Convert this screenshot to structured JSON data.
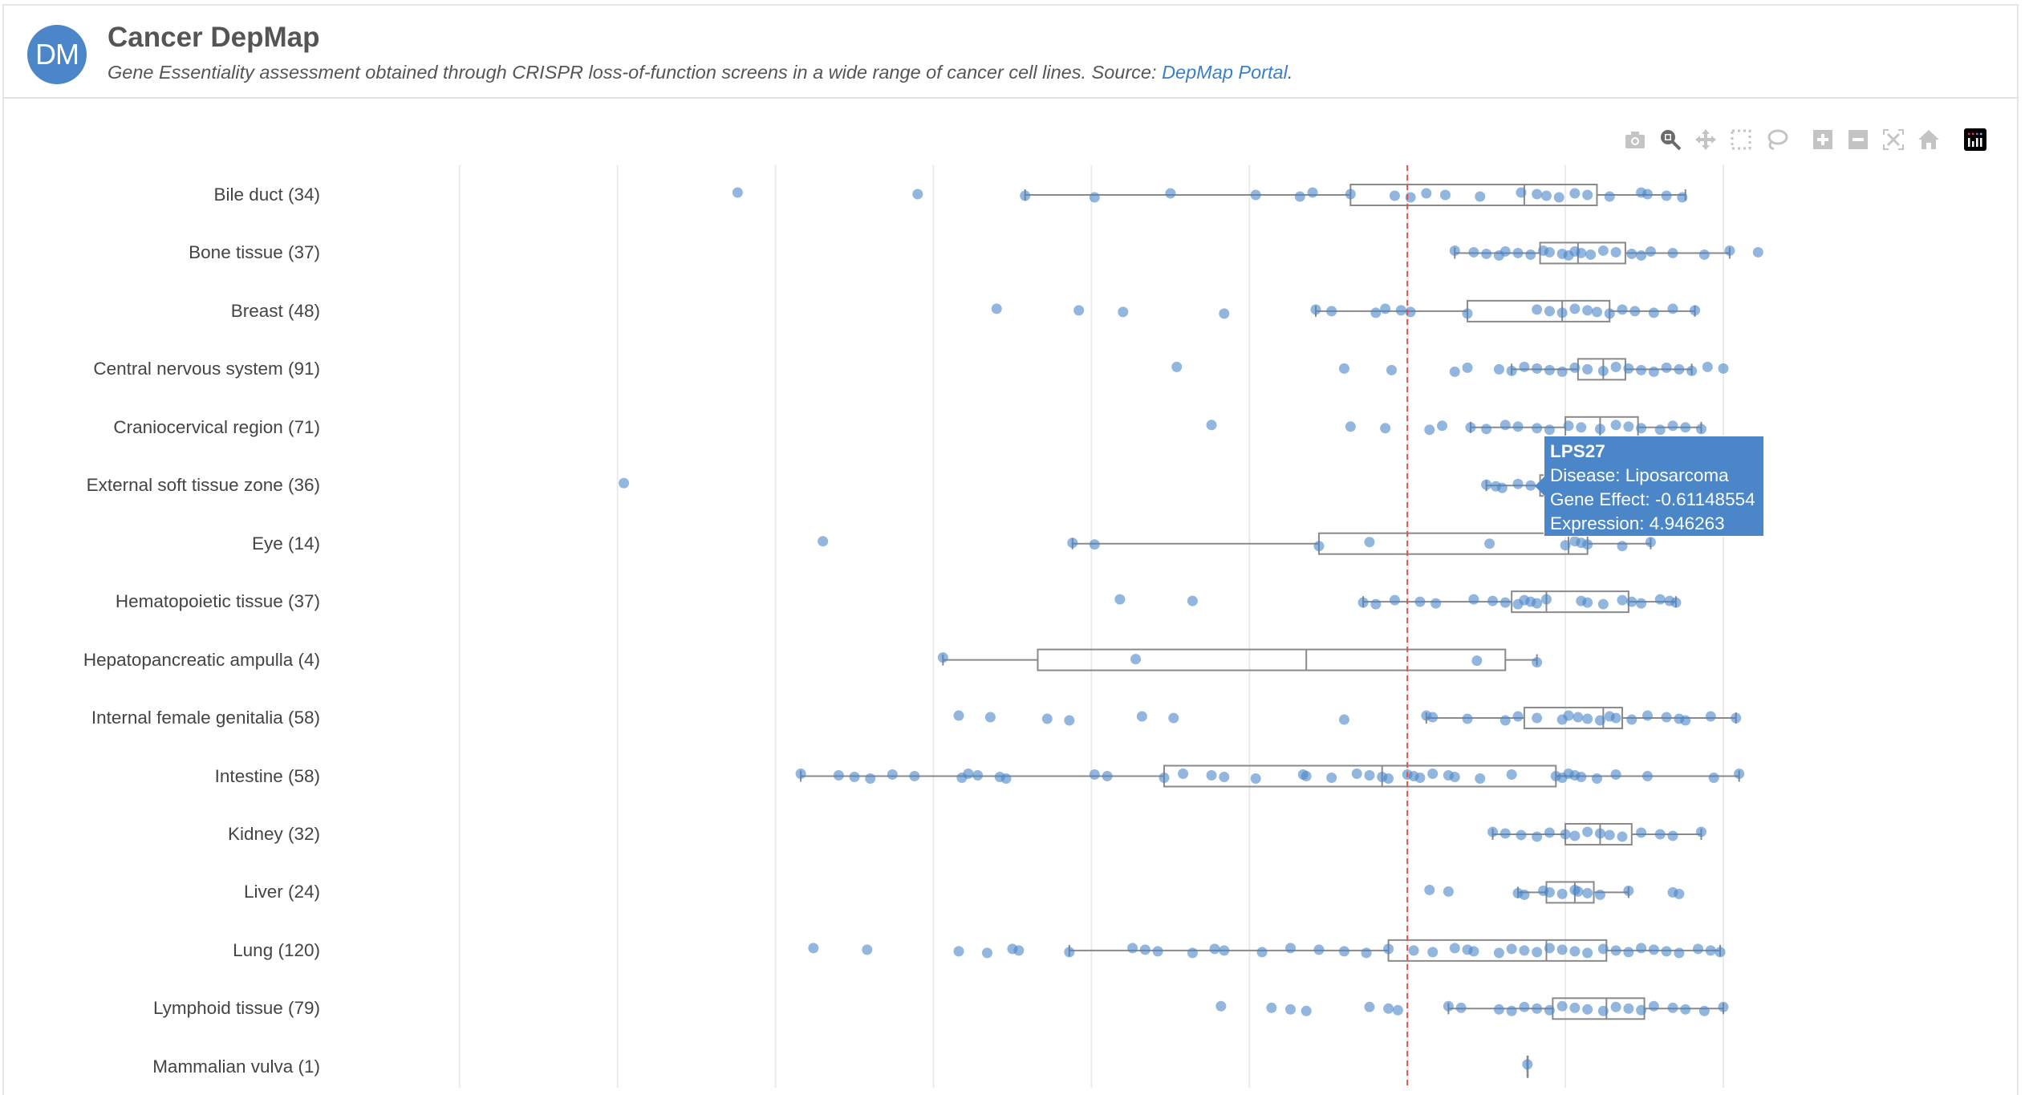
{
  "header": {
    "avatar": "DM",
    "title": "Cancer DepMap",
    "subtitle": "Gene Essentiality assessment obtained through CRISPR loss-of-function screens in a wide range of cancer cell lines. Source: ",
    "source_link": "DepMap Portal",
    "subtitle_end": "."
  },
  "toolbar": [
    {
      "icon": "camera-icon",
      "name": "download-plot-button",
      "active": false
    },
    {
      "icon": "zoom-icon",
      "name": "zoom-button",
      "active": true
    },
    {
      "icon": "pan-icon",
      "name": "pan-button",
      "active": false
    },
    {
      "icon": "box-select-icon",
      "name": "box-select-button",
      "active": false
    },
    {
      "icon": "lasso-icon",
      "name": "lasso-select-button",
      "active": false
    },
    {
      "icon": "zoom-in-icon",
      "name": "zoom-in-button",
      "active": false
    },
    {
      "icon": "zoom-out-icon",
      "name": "zoom-out-button",
      "active": false
    },
    {
      "icon": "autoscale-icon",
      "name": "autoscale-button",
      "active": false
    },
    {
      "icon": "home-icon",
      "name": "reset-axes-button",
      "active": false
    },
    {
      "icon": "plotly-logo-icon",
      "name": "plotly-logo",
      "active": false
    }
  ],
  "tooltip": {
    "title": "LPS27",
    "line1": "Disease: Liposarcoma",
    "line2": "Gene Effect: -0.61148554",
    "line3": "Expression: 4.946263"
  },
  "colors": {
    "point": "#4a86c8",
    "box": "#8a8a8a",
    "reference_line": "#d9534f",
    "grid": "#ebebeb",
    "tooltip": "#4a86c8"
  },
  "chart_data": {
    "type": "box",
    "orientation": "horizontal",
    "xrange": [
      -4.4,
      0.2
    ],
    "grid": true,
    "grid_step": 0.5,
    "reference_line": -1,
    "categories": [
      {
        "label": "Bile duct (34)",
        "box": [
          -2.21,
          -1.18,
          -0.63,
          -0.4,
          -0.12
        ],
        "points": [
          -3.12,
          -2.55,
          -2.21,
          -1.99,
          -1.75,
          -1.48,
          -1.34,
          -1.3,
          -1.18,
          -1.04,
          -0.99,
          -0.94,
          -0.88,
          -0.77,
          -0.64,
          -0.59,
          -0.56,
          -0.52,
          -0.47,
          -0.43,
          -0.36,
          -0.26,
          -0.24,
          -0.18,
          -0.13
        ]
      },
      {
        "label": "Bone tissue (37)",
        "box": [
          -0.85,
          -0.58,
          -0.46,
          -0.31,
          0.02
        ],
        "points": [
          -0.85,
          -0.79,
          -0.75,
          -0.71,
          -0.69,
          -0.65,
          -0.61,
          -0.57,
          -0.55,
          -0.51,
          -0.49,
          -0.47,
          -0.45,
          -0.42,
          -0.38,
          -0.34,
          -0.29,
          -0.26,
          -0.23,
          -0.16,
          -0.06,
          0.02,
          0.11
        ]
      },
      {
        "label": "Breast (48)",
        "box": [
          -1.29,
          -0.81,
          -0.51,
          -0.36,
          -0.09
        ],
        "points": [
          -2.3,
          -2.04,
          -1.9,
          -1.58,
          -1.29,
          -1.24,
          -1.1,
          -1.07,
          -1.02,
          -0.99,
          -0.81,
          -0.59,
          -0.55,
          -0.51,
          -0.47,
          -0.43,
          -0.4,
          -0.36,
          -0.32,
          -0.28,
          -0.22,
          -0.16,
          -0.09
        ]
      },
      {
        "label": "Central nervous system (91)",
        "box": [
          -0.67,
          -0.46,
          -0.38,
          -0.31,
          -0.1
        ],
        "points": [
          -1.73,
          -1.2,
          -1.05,
          -0.85,
          -0.81,
          -0.71,
          -0.67,
          -0.63,
          -0.59,
          -0.55,
          -0.51,
          -0.47,
          -0.43,
          -0.38,
          -0.34,
          -0.3,
          -0.26,
          -0.22,
          -0.18,
          -0.14,
          -0.1,
          -0.05,
          0.0
        ]
      },
      {
        "label": "Craniocervical region (71)",
        "box": [
          -0.8,
          -0.5,
          -0.39,
          -0.27,
          -0.07
        ],
        "points": [
          -1.62,
          -1.18,
          -1.07,
          -0.93,
          -0.89,
          -0.8,
          -0.75,
          -0.69,
          -0.65,
          -0.59,
          -0.55,
          -0.49,
          -0.45,
          -0.39,
          -0.34,
          -0.3,
          -0.26,
          -0.2,
          -0.16,
          -0.12,
          -0.07
        ]
      },
      {
        "label": "External soft tissue zone (36)",
        "box": [
          -0.75,
          -0.58,
          -0.49,
          -0.38,
          -0.18
        ],
        "points": [
          -3.48,
          -0.75,
          -0.72,
          -0.7,
          -0.65,
          -0.61,
          -0.57
        ]
      },
      {
        "label": "Eye (14)",
        "box": [
          -2.06,
          -1.28,
          -0.49,
          -0.43,
          -0.23
        ],
        "points": [
          -2.85,
          -2.06,
          -1.99,
          -1.28,
          -1.12,
          -0.74,
          -0.5,
          -0.47,
          -0.45,
          -0.43,
          -0.32,
          -0.23
        ]
      },
      {
        "label": "Hematopoietic tissue (37)",
        "box": [
          -1.14,
          -0.67,
          -0.56,
          -0.3,
          -0.15
        ],
        "points": [
          -1.91,
          -1.68,
          -1.14,
          -1.1,
          -1.04,
          -0.96,
          -0.91,
          -0.79,
          -0.73,
          -0.69,
          -0.65,
          -0.63,
          -0.61,
          -0.59,
          -0.56,
          -0.45,
          -0.43,
          -0.38,
          -0.32,
          -0.29,
          -0.26,
          -0.2,
          -0.17,
          -0.15
        ]
      },
      {
        "label": "Hepatopancreatic ampulla (4)",
        "box": [
          -2.47,
          -2.17,
          -1.32,
          -0.69,
          -0.59
        ],
        "points": [
          -2.47,
          -1.86,
          -0.78,
          -0.59
        ]
      },
      {
        "label": "Internal female genitalia (58)",
        "box": [
          -0.94,
          -0.63,
          -0.38,
          -0.32,
          0.04
        ],
        "points": [
          -2.42,
          -2.32,
          -2.14,
          -2.07,
          -1.84,
          -1.74,
          -1.2,
          -0.94,
          -0.92,
          -0.81,
          -0.69,
          -0.65,
          -0.59,
          -0.51,
          -0.49,
          -0.46,
          -0.43,
          -0.39,
          -0.36,
          -0.34,
          -0.29,
          -0.24,
          -0.18,
          -0.14,
          -0.12,
          -0.04,
          0.04
        ]
      },
      {
        "label": "Intestine (58)",
        "box": [
          -2.92,
          -1.77,
          -1.08,
          -0.53,
          0.05
        ],
        "points": [
          -2.92,
          -2.8,
          -2.75,
          -2.7,
          -2.63,
          -2.56,
          -2.41,
          -2.39,
          -2.36,
          -2.29,
          -2.27,
          -1.99,
          -1.95,
          -1.77,
          -1.71,
          -1.62,
          -1.58,
          -1.48,
          -1.33,
          -1.32,
          -1.24,
          -1.16,
          -1.12,
          -1.08,
          -1.06,
          -1.0,
          -0.98,
          -0.96,
          -0.92,
          -0.87,
          -0.85,
          -0.77,
          -0.67,
          -0.53,
          -0.51,
          -0.49,
          -0.47,
          -0.45,
          -0.4,
          -0.34,
          -0.24,
          -0.03,
          0.05
        ]
      },
      {
        "label": "Kidney (32)",
        "box": [
          -0.73,
          -0.5,
          -0.39,
          -0.29,
          -0.07
        ],
        "points": [
          -0.73,
          -0.69,
          -0.64,
          -0.59,
          -0.55,
          -0.5,
          -0.47,
          -0.43,
          -0.39,
          -0.36,
          -0.32,
          -0.26,
          -0.2,
          -0.16,
          -0.07
        ]
      },
      {
        "label": "Liver (24)",
        "box": [
          -0.65,
          -0.56,
          -0.47,
          -0.41,
          -0.3
        ],
        "points": [
          -0.93,
          -0.87,
          -0.65,
          -0.63,
          -0.57,
          -0.55,
          -0.51,
          -0.47,
          -0.46,
          -0.43,
          -0.39,
          -0.3,
          -0.16,
          -0.14
        ]
      },
      {
        "label": "Lung (120)",
        "box": [
          -2.07,
          -1.06,
          -0.56,
          -0.37,
          -0.01
        ],
        "points": [
          -2.88,
          -2.71,
          -2.42,
          -2.33,
          -2.25,
          -2.23,
          -2.07,
          -1.87,
          -1.83,
          -1.79,
          -1.68,
          -1.61,
          -1.58,
          -1.46,
          -1.37,
          -1.28,
          -1.2,
          -1.13,
          -1.06,
          -0.98,
          -0.92,
          -0.85,
          -0.81,
          -0.79,
          -0.71,
          -0.67,
          -0.63,
          -0.59,
          -0.55,
          -0.51,
          -0.47,
          -0.43,
          -0.38,
          -0.34,
          -0.3,
          -0.26,
          -0.22,
          -0.18,
          -0.14,
          -0.08,
          -0.04,
          -0.01
        ]
      },
      {
        "label": "Lymphoid tissue (79)",
        "box": [
          -0.87,
          -0.54,
          -0.37,
          -0.25,
          0.0
        ],
        "points": [
          -1.59,
          -1.43,
          -1.37,
          -1.32,
          -1.12,
          -1.06,
          -1.03,
          -0.87,
          -0.83,
          -0.71,
          -0.67,
          -0.63,
          -0.59,
          -0.55,
          -0.51,
          -0.47,
          -0.43,
          -0.38,
          -0.34,
          -0.3,
          -0.26,
          -0.22,
          -0.16,
          -0.12,
          -0.06,
          0.0
        ]
      },
      {
        "label": "Mammalian vulva (1)",
        "box": [
          -0.62,
          -0.62,
          -0.62,
          -0.62,
          -0.62
        ],
        "points": [
          -0.62
        ]
      }
    ]
  }
}
